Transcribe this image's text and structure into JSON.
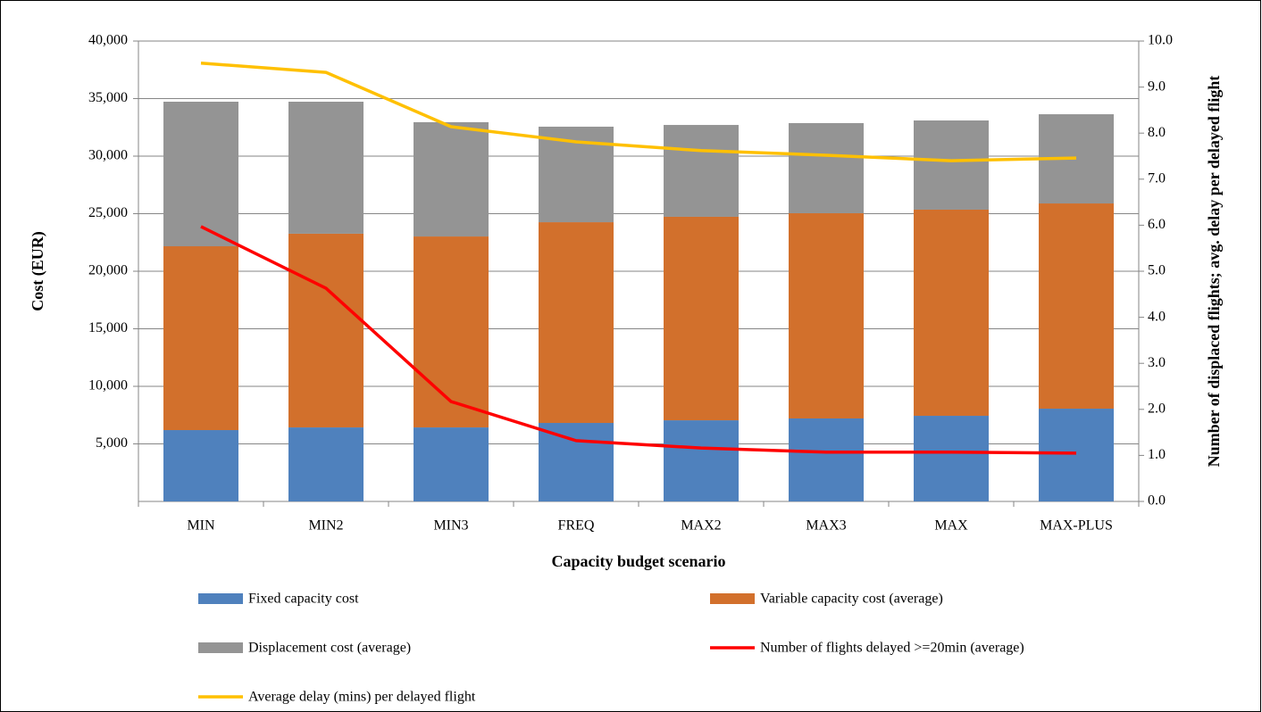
{
  "chart_data": {
    "type": "bar",
    "stacked": true,
    "x_label": "Capacity budget scenario",
    "y_label": "Cost (EUR)",
    "y2_label": "Number of displaced  flights; avg. delay per delayed flight",
    "categories": [
      "MIN",
      "MIN2",
      "MIN3",
      "FREQ",
      "MAX2",
      "MAX3",
      "MAX",
      "MAX-PLUS"
    ],
    "series": [
      {
        "name": "Fixed capacity cost",
        "type": "bar",
        "color": "#4f81bd",
        "values": [
          6200,
          6430,
          6430,
          6820,
          7050,
          7210,
          7440,
          8060
        ]
      },
      {
        "name": "Variable capacity cost (average)",
        "type": "bar",
        "color": "#d2702c",
        "values": [
          15970,
          16830,
          16590,
          17440,
          17680,
          17830,
          17910,
          17830
        ]
      },
      {
        "name": "Displacement cost (average)",
        "type": "bar",
        "color": "#949494",
        "values": [
          12560,
          11470,
          9930,
          8300,
          7980,
          7830,
          7750,
          7750
        ]
      },
      {
        "name": "Number of flights delayed >=20min (average)",
        "type": "line",
        "axis": "y2",
        "color": "#ff0000",
        "values": [
          5.97,
          4.63,
          2.17,
          1.32,
          1.16,
          1.07,
          1.07,
          1.05
        ]
      },
      {
        "name": "Average delay (mins) per delayed flight",
        "type": "line",
        "axis": "y2",
        "color": "#ffc000",
        "values": [
          9.52,
          9.32,
          8.14,
          7.81,
          7.62,
          7.52,
          7.4,
          7.46
        ]
      }
    ],
    "ylim": [
      0,
      40000
    ],
    "yticks": [
      {
        "value": 5000,
        "label": "5,000"
      },
      {
        "value": 10000,
        "label": "10,000"
      },
      {
        "value": 15000,
        "label": "15,000"
      },
      {
        "value": 20000,
        "label": "20,000"
      },
      {
        "value": 25000,
        "label": "25,000"
      },
      {
        "value": 30000,
        "label": "30,000"
      },
      {
        "value": 35000,
        "label": "35,000"
      },
      {
        "value": 40000,
        "label": "40,000"
      }
    ],
    "y2lim": [
      0,
      10
    ],
    "y2ticks": [
      {
        "value": 0,
        "label": "0.0"
      },
      {
        "value": 1,
        "label": "1.0"
      },
      {
        "value": 2,
        "label": "2.0"
      },
      {
        "value": 3,
        "label": "3.0"
      },
      {
        "value": 4,
        "label": "4.0"
      },
      {
        "value": 5,
        "label": "5.0"
      },
      {
        "value": 6,
        "label": "6.0"
      },
      {
        "value": 7,
        "label": "7.0"
      },
      {
        "value": 8,
        "label": "8.0"
      },
      {
        "value": 9,
        "label": "9.0"
      },
      {
        "value": 10,
        "label": "10.0"
      }
    ],
    "grid": true,
    "legend": "bottom"
  }
}
